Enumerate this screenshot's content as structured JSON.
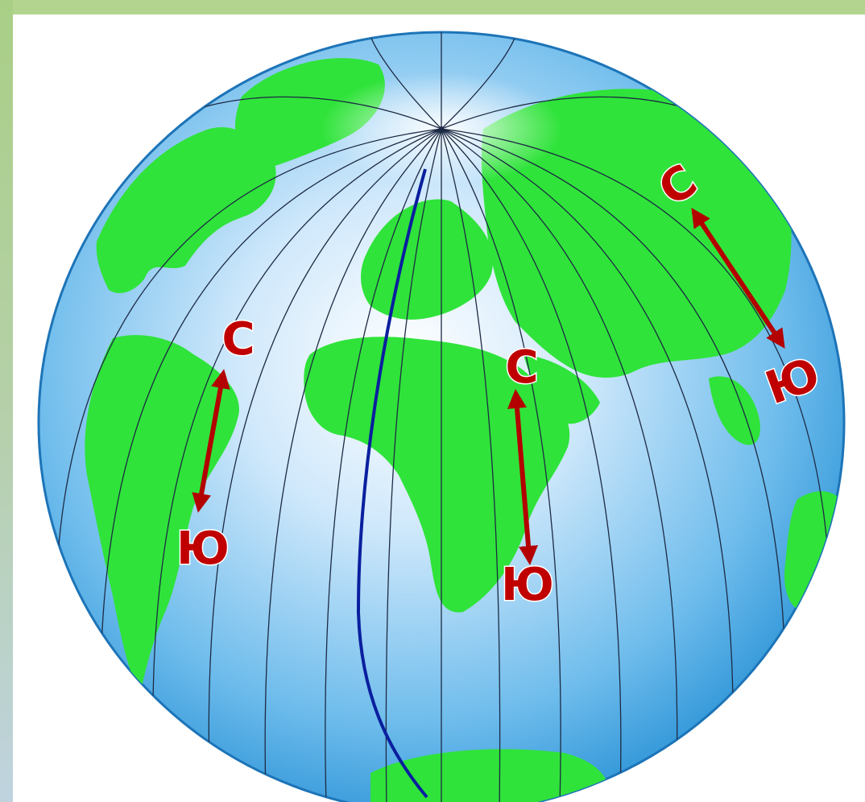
{
  "colors": {
    "ocean": "#3aa4e4",
    "land": "#2fe33a",
    "meridian": "#1d2a44",
    "prime_meridian": "#0a1f9e",
    "arrow": "#b30000",
    "label": "#c00000"
  },
  "labels": {
    "north": "С",
    "south": "Ю"
  }
}
